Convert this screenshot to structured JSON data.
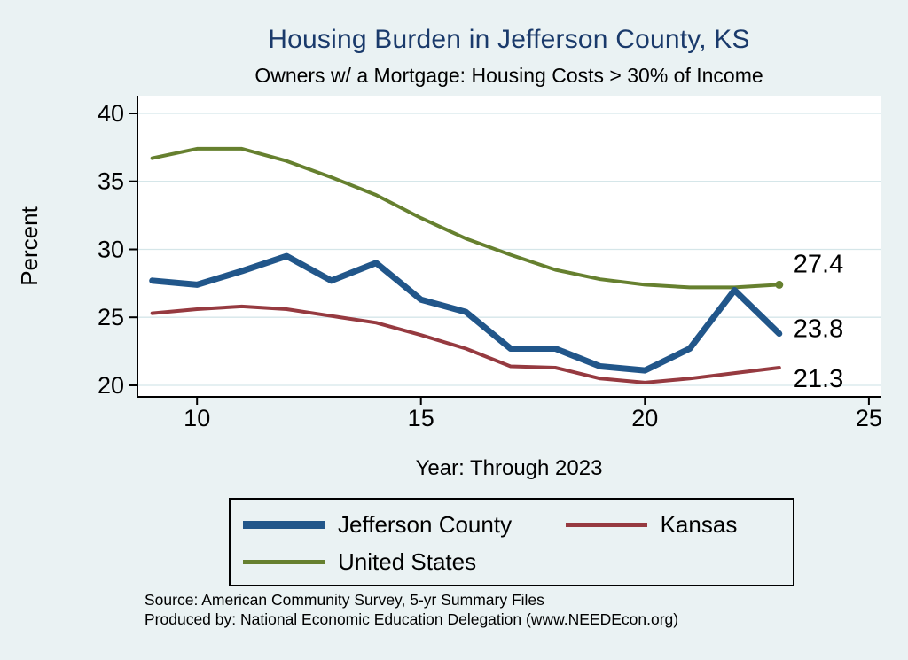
{
  "title": "Housing Burden in Jefferson County, KS",
  "subtitle": "Owners w/ a Mortgage: Housing Costs > 30% of Income",
  "footer": {
    "source": "Source: American Community Survey, 5-yr Summary Files",
    "produced_by": "Produced by: National Economic Education Delegation (www.NEEDEcon.org)"
  },
  "colors": {
    "background": "#eaf2f3",
    "plot_background": "#ffffff",
    "title": "#1a3a6b",
    "grid": "#d5e6e9",
    "axis": "#000000"
  },
  "chart_data": {
    "type": "line",
    "title": "Housing Burden in Jefferson County, KS",
    "subtitle": "Owners w/ a Mortgage: Housing Costs > 30% of Income",
    "xlabel": "Year: Through 2023",
    "ylabel": "Percent",
    "x": [
      9,
      10,
      11,
      12,
      13,
      14,
      15,
      16,
      17,
      18,
      19,
      20,
      21,
      22,
      23
    ],
    "x_ticks": [
      10,
      15,
      20,
      25
    ],
    "y_ticks": [
      20,
      25,
      30,
      35,
      40
    ],
    "xlim": [
      8.67,
      25.26
    ],
    "ylim": [
      19.15,
      41.3
    ],
    "grid": true,
    "legend_position": "bottom",
    "series": [
      {
        "name": "Jefferson County",
        "color": "#21568a",
        "thickness": 7,
        "end_label": "23.8",
        "values": [
          27.7,
          27.4,
          28.4,
          29.5,
          27.7,
          29.0,
          26.3,
          25.4,
          22.7,
          22.7,
          21.4,
          21.1,
          22.7,
          27.0,
          23.8
        ]
      },
      {
        "name": "Kansas",
        "color": "#963a40",
        "thickness": 4,
        "end_label": "21.3",
        "values": [
          25.3,
          25.6,
          25.8,
          25.6,
          25.1,
          24.6,
          23.7,
          22.7,
          21.4,
          21.3,
          20.5,
          20.2,
          20.5,
          20.9,
          21.3
        ]
      },
      {
        "name": "United States",
        "color": "#66802f",
        "thickness": 4,
        "end_label": "27.4",
        "values": [
          36.7,
          37.4,
          37.4,
          36.5,
          35.3,
          34.0,
          32.3,
          30.8,
          29.6,
          28.5,
          27.8,
          27.4,
          27.2,
          27.2,
          27.4
        ]
      }
    ]
  }
}
